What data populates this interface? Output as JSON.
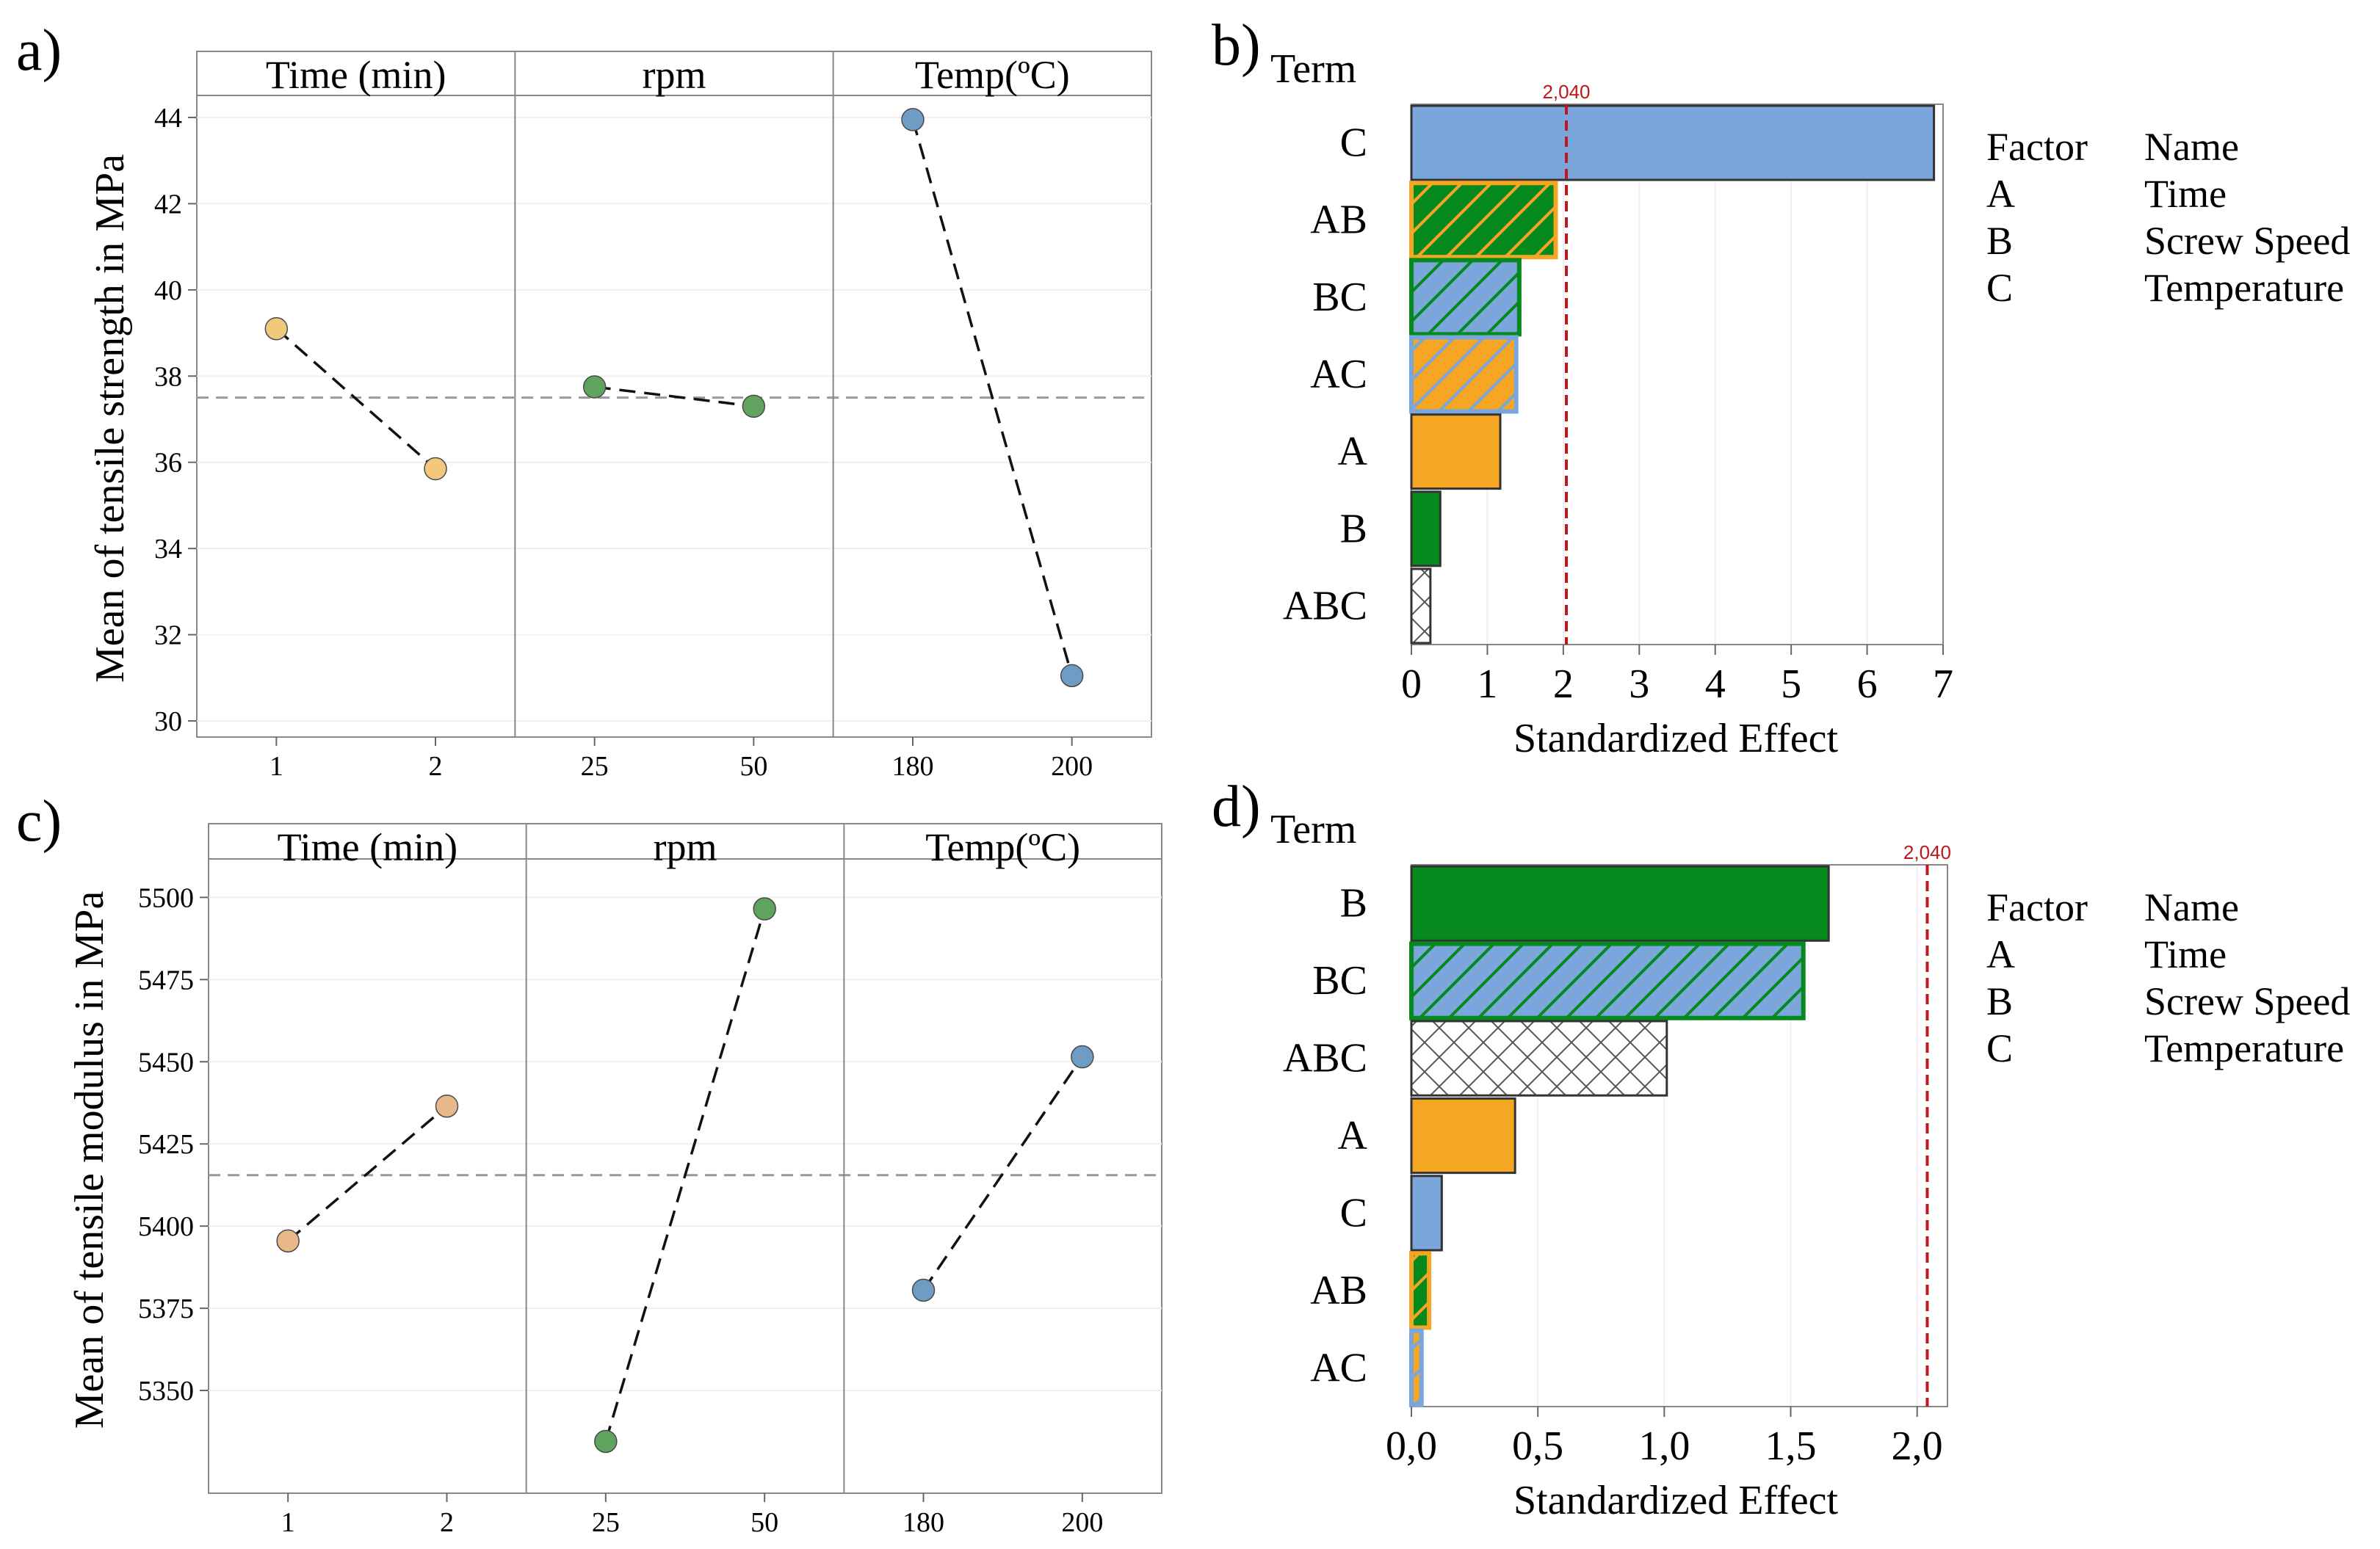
{
  "colors": {
    "orange": "#f5a623",
    "orange_light": "#f2c97a",
    "peach": "#e8b88a",
    "green": "#068a1e",
    "green_point": "#5fa35f",
    "blue": "#7aa6dc",
    "blue_point": "#6e9cc4",
    "ref_line": "#c0161c",
    "mean_line": "#999999"
  },
  "chart_data": [
    {
      "id": "a",
      "panel_label": "a)",
      "type": "line",
      "ylabel": "Mean of tensile strength in MPa",
      "ylim": [
        30,
        44
      ],
      "y_ticks": [
        "30",
        "32",
        "34",
        "36",
        "38",
        "40",
        "42",
        "44"
      ],
      "mean": 37.5,
      "facets": [
        {
          "title": "Time (min)",
          "x": [
            "1",
            "2"
          ],
          "y": [
            39.1,
            35.85
          ],
          "color": "orange_light"
        },
        {
          "title": "rpm",
          "x": [
            "25",
            "50"
          ],
          "y": [
            37.75,
            37.3
          ],
          "color": "green_point"
        },
        {
          "title": "Temp(ºC)",
          "x": [
            "180",
            "200"
          ],
          "y": [
            43.95,
            31.05
          ],
          "color": "blue_point"
        }
      ]
    },
    {
      "id": "b",
      "panel_label": "b)",
      "type": "bar",
      "orientation": "horizontal",
      "ylabel": "Term",
      "xlabel": "Standardized Effect",
      "xlim": [
        0,
        7
      ],
      "x_ticks": [
        "0",
        "1",
        "2",
        "3",
        "4",
        "5",
        "6",
        "7"
      ],
      "reference_value": 2.04,
      "reference_label": "2,040",
      "bars": [
        {
          "term": "C",
          "value": 6.88,
          "fill": "blue",
          "hatch": null,
          "hatch_color": null,
          "edge": "#333333"
        },
        {
          "term": "AB",
          "value": 1.9,
          "fill": "green",
          "hatch": "diag",
          "hatch_color": "orange",
          "edge": "orange"
        },
        {
          "term": "BC",
          "value": 1.42,
          "fill": "blue",
          "hatch": "diag",
          "hatch_color": "green",
          "edge": "green"
        },
        {
          "term": "AC",
          "value": 1.38,
          "fill": "orange",
          "hatch": "diag",
          "hatch_color": "blue",
          "edge": "blue"
        },
        {
          "term": "A",
          "value": 1.17,
          "fill": "orange",
          "hatch": null,
          "hatch_color": null,
          "edge": "#333333"
        },
        {
          "term": "B",
          "value": 0.38,
          "fill": "green",
          "hatch": null,
          "hatch_color": null,
          "edge": "#333333"
        },
        {
          "term": "ABC",
          "value": 0.25,
          "fill": "#ffffff",
          "hatch": "cross",
          "hatch_color": "#555555",
          "edge": "#333333"
        }
      ],
      "legend": {
        "headers": [
          "Factor",
          "Name"
        ],
        "rows": [
          [
            "A",
            "Time"
          ],
          [
            "B",
            "Screw Speed"
          ],
          [
            "C",
            "Temperature"
          ]
        ]
      }
    },
    {
      "id": "c",
      "panel_label": "c)",
      "type": "line",
      "ylabel": "Mean of tensile modulus in MPa",
      "ylim": [
        5325,
        5505
      ],
      "y_ticks": [
        "5350",
        "5375",
        "5400",
        "5425",
        "5450",
        "5475",
        "5500"
      ],
      "mean": 5415.5,
      "facets": [
        {
          "title": "Time (min)",
          "x": [
            "1",
            "2"
          ],
          "y": [
            5395.5,
            5436.5
          ],
          "color": "peach"
        },
        {
          "title": "rpm",
          "x": [
            "25",
            "50"
          ],
          "y": [
            5334.5,
            5496.5
          ],
          "color": "green_point"
        },
        {
          "title": "Temp(ºC)",
          "x": [
            "180",
            "200"
          ],
          "y": [
            5380.5,
            5451.5
          ],
          "color": "blue_point"
        }
      ]
    },
    {
      "id": "d",
      "panel_label": "d)",
      "type": "bar",
      "orientation": "horizontal",
      "ylabel": "Term",
      "xlabel": "Standardized Effect",
      "xlim": [
        0,
        2.12
      ],
      "x_ticks": [
        "0,0",
        "0,5",
        "1,0",
        "1,5",
        "2,0"
      ],
      "x_tick_values": [
        0,
        0.5,
        1.0,
        1.5,
        2.0
      ],
      "reference_value": 2.04,
      "reference_label": "2,040",
      "bars": [
        {
          "term": "B",
          "value": 1.65,
          "fill": "green",
          "hatch": null,
          "hatch_color": null,
          "edge": "#333333"
        },
        {
          "term": "BC",
          "value": 1.55,
          "fill": "blue",
          "hatch": "diag",
          "hatch_color": "green",
          "edge": "green"
        },
        {
          "term": "ABC",
          "value": 1.01,
          "fill": "#ffffff",
          "hatch": "cross",
          "hatch_color": "#555555",
          "edge": "#333333"
        },
        {
          "term": "A",
          "value": 0.41,
          "fill": "orange",
          "hatch": null,
          "hatch_color": null,
          "edge": "#333333"
        },
        {
          "term": "C",
          "value": 0.12,
          "fill": "blue",
          "hatch": null,
          "hatch_color": null,
          "edge": "#333333"
        },
        {
          "term": "AB",
          "value": 0.07,
          "fill": "green",
          "hatch": "diag",
          "hatch_color": "orange",
          "edge": "orange"
        },
        {
          "term": "AC",
          "value": 0.04,
          "fill": "orange",
          "hatch": "diag",
          "hatch_color": "blue",
          "edge": "blue"
        }
      ],
      "legend": {
        "headers": [
          "Factor",
          "Name"
        ],
        "rows": [
          [
            "A",
            "Time"
          ],
          [
            "B",
            "Screw Speed"
          ],
          [
            "C",
            "Temperature"
          ]
        ]
      }
    }
  ]
}
